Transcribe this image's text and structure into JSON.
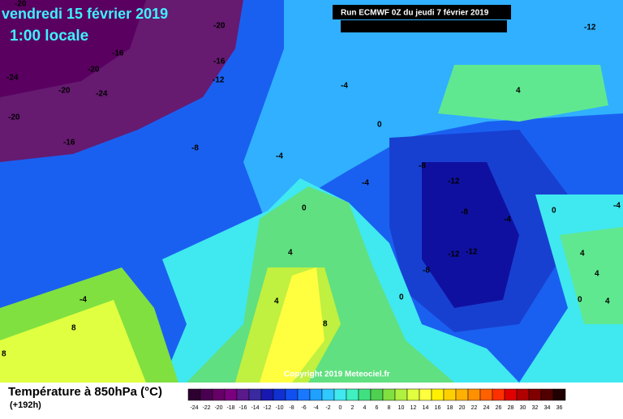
{
  "header": {
    "date": "vendredi 15 février 2019",
    "time": "1:00 locale",
    "run": "Run ECMWF 0Z du jeudi 7 février 2019"
  },
  "map": {
    "labels": [
      -20,
      -20,
      -16,
      -16,
      -20,
      -24,
      -12,
      -20,
      -24,
      -20,
      -16,
      -12,
      -4,
      0,
      -8,
      -4,
      4,
      -8,
      -4,
      -12,
      0,
      -8,
      -4,
      0,
      -4,
      4,
      -12,
      -12,
      -8,
      4,
      4,
      -4,
      4,
      0,
      4,
      0,
      8,
      8,
      8
    ],
    "copyright": "Copyright 2019 Meteociel.fr"
  },
  "footer": {
    "title": "Température à 850hPa (°C)",
    "subtitle": "(+192h)"
  },
  "legend": {
    "ticks": [
      -24,
      -22,
      -20,
      -18,
      -16,
      -14,
      -12,
      -10,
      -8,
      -6,
      -4,
      -2,
      0,
      2,
      4,
      6,
      8,
      10,
      12,
      14,
      16,
      18,
      20,
      22,
      24,
      26,
      28,
      30,
      32,
      34,
      36
    ],
    "colors": [
      "#2d0030",
      "#4a0050",
      "#660066",
      "#7a0080",
      "#5a1a8a",
      "#3a2aa0",
      "#1818b0",
      "#1030d0",
      "#1050f0",
      "#1a78ff",
      "#20a0ff",
      "#30c8ff",
      "#40e8f0",
      "#40f0c0",
      "#40e080",
      "#50d050",
      "#80e040",
      "#b0f040",
      "#e0ff40",
      "#ffff40",
      "#fff000",
      "#ffd000",
      "#ffb000",
      "#ff9000",
      "#ff6000",
      "#ff3000",
      "#e00000",
      "#b00000",
      "#800000",
      "#500000",
      "#200000"
    ]
  }
}
